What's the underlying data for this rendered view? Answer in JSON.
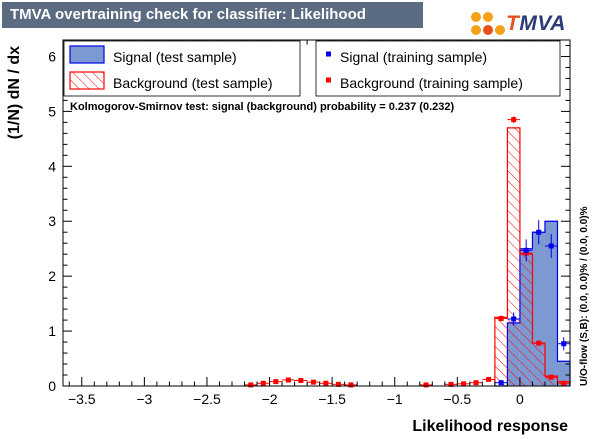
{
  "title": "TMVA overtraining check for classifier: Likelihood",
  "logo": {
    "name": "tmva-logo",
    "prefix": "T",
    "rest": "MVA"
  },
  "colors": {
    "title_bg": "#5a6b82",
    "signal_fill": "#7d99d1",
    "signal_line": "#0000ee",
    "background_line": "#ff0000",
    "training_marker_signal": "#0000ee",
    "training_marker_background": "#ff0000"
  },
  "chart_data": {
    "type": "histogram",
    "xlabel": "Likelihood response",
    "ylabel": "(1/N) dN / dx",
    "xlim": [
      -3.65,
      0.4
    ],
    "ylim": [
      0,
      6.3
    ],
    "xticks": [
      -3.5,
      -3,
      -2.5,
      -2,
      -1.5,
      -1,
      -0.5,
      0
    ],
    "xtick_labels": [
      "−3.5",
      "−3",
      "−2.5",
      "−2",
      "−1.5",
      "−1",
      "−0.5",
      "0"
    ],
    "yticks": [
      0,
      1,
      2,
      3,
      4,
      5,
      6
    ],
    "bin_width": 0.1,
    "bin_starts": [
      -0.2,
      -0.1,
      0.0,
      0.1,
      0.2,
      0.3
    ],
    "signal_test": [
      0.0,
      1.15,
      2.5,
      2.8,
      3.0,
      0.45
    ],
    "background_test": [
      1.25,
      4.7,
      2.4,
      0.78,
      0.18,
      0.08
    ],
    "signal_training": [
      {
        "x": -0.15,
        "y": 0.06,
        "err": 0.02
      },
      {
        "x": -0.05,
        "y": 1.22,
        "err": 0.12
      },
      {
        "x": 0.05,
        "y": 2.47,
        "err": 0.2
      },
      {
        "x": 0.15,
        "y": 2.8,
        "err": 0.22
      },
      {
        "x": 0.25,
        "y": 2.55,
        "err": 0.22
      },
      {
        "x": 0.35,
        "y": 0.77,
        "err": 0.12
      }
    ],
    "background_training": [
      {
        "x": -2.15,
        "y": 0.02,
        "err": 0.01
      },
      {
        "x": -2.05,
        "y": 0.05,
        "err": 0.015
      },
      {
        "x": -1.95,
        "y": 0.08,
        "err": 0.02
      },
      {
        "x": -1.85,
        "y": 0.11,
        "err": 0.02
      },
      {
        "x": -1.75,
        "y": 0.1,
        "err": 0.02
      },
      {
        "x": -1.65,
        "y": 0.07,
        "err": 0.015
      },
      {
        "x": -1.55,
        "y": 0.05,
        "err": 0.015
      },
      {
        "x": -1.45,
        "y": 0.03,
        "err": 0.01
      },
      {
        "x": -1.35,
        "y": 0.02,
        "err": 0.01
      },
      {
        "x": -0.75,
        "y": 0.02,
        "err": 0.01
      },
      {
        "x": -0.55,
        "y": 0.03,
        "err": 0.01
      },
      {
        "x": -0.45,
        "y": 0.04,
        "err": 0.01
      },
      {
        "x": -0.35,
        "y": 0.06,
        "err": 0.015
      },
      {
        "x": -0.25,
        "y": 0.12,
        "err": 0.02
      },
      {
        "x": -0.15,
        "y": 1.23,
        "err": 0.05
      },
      {
        "x": -0.05,
        "y": 4.85,
        "err": 0.06
      },
      {
        "x": 0.05,
        "y": 2.42,
        "err": 0.05
      },
      {
        "x": 0.15,
        "y": 0.78,
        "err": 0.03
      },
      {
        "x": 0.25,
        "y": 0.16,
        "err": 0.015
      },
      {
        "x": 0.35,
        "y": 0.05,
        "err": 0.01
      }
    ],
    "legend": {
      "placement": "top",
      "entries": [
        {
          "key": "signal_test",
          "label": "Signal (test sample)"
        },
        {
          "key": "signal_training",
          "label": "Signal (training sample)"
        },
        {
          "key": "background_test",
          "label": "Background (test sample)"
        },
        {
          "key": "background_training",
          "label": "Background (training sample)"
        }
      ]
    },
    "annotation": "Kolmogorov-Smirnov test: signal (background) probability = 0.237 (0.232)",
    "side_label": "U/O-flow (S,B): (0.0, 0.0)% / (0.0, 0.0)%"
  }
}
